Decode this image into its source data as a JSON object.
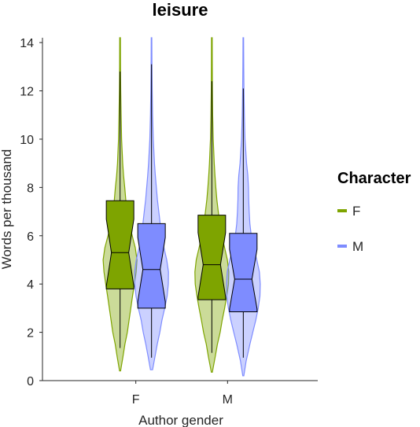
{
  "chart_data": {
    "type": "violin",
    "title": "leisure",
    "xlabel": "Author gender",
    "ylabel": "Words per thousand",
    "categories": [
      "F",
      "M"
    ],
    "ylim": [
      0,
      14.2
    ],
    "yticks": [
      0,
      2,
      4,
      6,
      8,
      10,
      12,
      14
    ],
    "grid": false,
    "legend": {
      "title": "Character",
      "position": "right",
      "entries": [
        {
          "label": "F",
          "color": "#7EA400"
        },
        {
          "label": "M",
          "color": "#7E8CFF"
        }
      ]
    },
    "series": [
      {
        "name": "F",
        "color": "#7EA400",
        "groups": [
          {
            "category": "F",
            "min": 0.4,
            "whisker_low": 1.35,
            "q1": 3.8,
            "median": 5.3,
            "q3": 7.45,
            "whisker_high": 12.8,
            "max": 14.2,
            "density": [
              [
                0.4,
                0.03
              ],
              [
                1.0,
                0.17
              ],
              [
                1.5,
                0.28
              ],
              [
                2.0,
                0.42
              ],
              [
                2.5,
                0.52
              ],
              [
                3.0,
                0.62
              ],
              [
                3.5,
                0.72
              ],
              [
                4.0,
                0.83
              ],
              [
                4.5,
                0.93
              ],
              [
                5.0,
                0.98
              ],
              [
                5.5,
                0.88
              ],
              [
                6.0,
                0.7
              ],
              [
                6.5,
                0.54
              ],
              [
                7.0,
                0.42
              ],
              [
                7.5,
                0.33
              ],
              [
                8.0,
                0.27
              ],
              [
                8.5,
                0.2
              ],
              [
                9.0,
                0.15
              ],
              [
                10.0,
                0.09
              ],
              [
                11.0,
                0.06
              ],
              [
                12.0,
                0.04
              ],
              [
                13.0,
                0.025
              ],
              [
                14.2,
                0.02
              ]
            ]
          },
          {
            "category": "M",
            "min": 0.35,
            "whisker_low": 1.15,
            "q1": 3.35,
            "median": 4.8,
            "q3": 6.85,
            "whisker_high": 12.4,
            "max": 14.2,
            "density": [
              [
                0.35,
                0.03
              ],
              [
                1.0,
                0.2
              ],
              [
                1.5,
                0.32
              ],
              [
                2.0,
                0.48
              ],
              [
                2.5,
                0.6
              ],
              [
                3.0,
                0.74
              ],
              [
                3.5,
                0.86
              ],
              [
                4.0,
                0.96
              ],
              [
                4.5,
                0.98
              ],
              [
                5.0,
                0.9
              ],
              [
                5.5,
                0.74
              ],
              [
                6.0,
                0.58
              ],
              [
                6.5,
                0.46
              ],
              [
                7.0,
                0.37
              ],
              [
                7.5,
                0.29
              ],
              [
                8.0,
                0.23
              ],
              [
                8.5,
                0.18
              ],
              [
                9.0,
                0.14
              ],
              [
                10.0,
                0.08
              ],
              [
                11.0,
                0.05
              ],
              [
                12.0,
                0.035
              ],
              [
                13.0,
                0.025
              ],
              [
                14.2,
                0.02
              ]
            ]
          }
        ]
      },
      {
        "name": "M",
        "color": "#7E8CFF",
        "groups": [
          {
            "category": "F",
            "min": 0.45,
            "whisker_low": 0.95,
            "q1": 3.0,
            "median": 4.6,
            "q3": 6.5,
            "whisker_high": 13.1,
            "max": 14.2,
            "density": [
              [
                0.45,
                0.06
              ],
              [
                1.0,
                0.2
              ],
              [
                1.5,
                0.33
              ],
              [
                2.0,
                0.48
              ],
              [
                2.5,
                0.6
              ],
              [
                3.0,
                0.76
              ],
              [
                3.5,
                0.9
              ],
              [
                4.0,
                0.97
              ],
              [
                4.5,
                0.98
              ],
              [
                5.0,
                0.88
              ],
              [
                5.5,
                0.72
              ],
              [
                6.0,
                0.6
              ],
              [
                6.5,
                0.5
              ],
              [
                7.0,
                0.42
              ],
              [
                7.5,
                0.34
              ],
              [
                8.0,
                0.28
              ],
              [
                8.5,
                0.22
              ],
              [
                9.0,
                0.17
              ],
              [
                10.0,
                0.1
              ],
              [
                11.0,
                0.06
              ],
              [
                12.0,
                0.04
              ],
              [
                13.0,
                0.025
              ],
              [
                14.2,
                0.015
              ]
            ]
          },
          {
            "category": "M",
            "min": 0.2,
            "whisker_low": 0.95,
            "q1": 2.85,
            "median": 4.2,
            "q3": 6.1,
            "whisker_high": 12.1,
            "max": 14.2,
            "density": [
              [
                0.2,
                0.03
              ],
              [
                0.8,
                0.16
              ],
              [
                1.5,
                0.38
              ],
              [
                2.0,
                0.55
              ],
              [
                2.5,
                0.72
              ],
              [
                3.0,
                0.86
              ],
              [
                3.5,
                0.96
              ],
              [
                4.0,
                0.98
              ],
              [
                4.5,
                0.93
              ],
              [
                5.0,
                0.78
              ],
              [
                5.5,
                0.6
              ],
              [
                6.0,
                0.46
              ],
              [
                6.5,
                0.38
              ],
              [
                7.0,
                0.34
              ],
              [
                7.5,
                0.31
              ],
              [
                8.0,
                0.3
              ],
              [
                8.5,
                0.26
              ],
              [
                9.0,
                0.19
              ],
              [
                10.0,
                0.1
              ],
              [
                11.0,
                0.06
              ],
              [
                12.0,
                0.04
              ],
              [
                13.0,
                0.025
              ],
              [
                14.2,
                0.015
              ]
            ]
          }
        ]
      }
    ]
  }
}
